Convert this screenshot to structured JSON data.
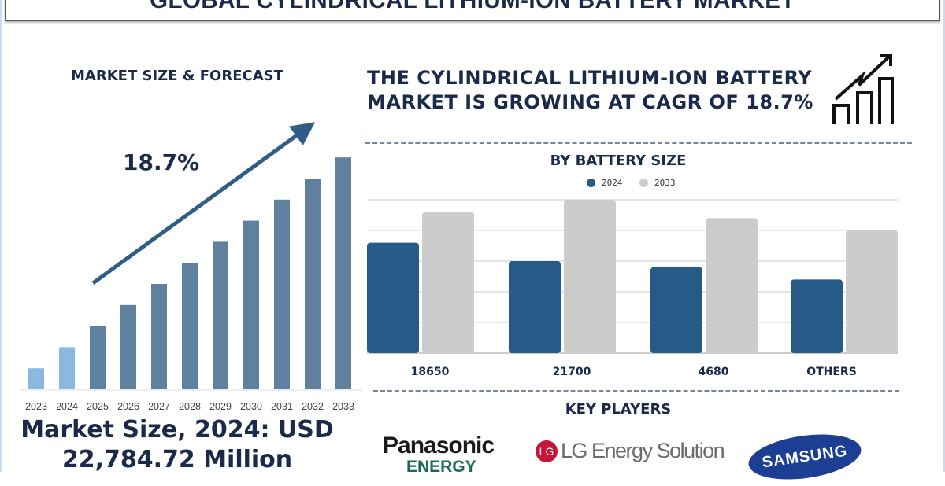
{
  "title": "GLOBAL CYLINDRICAL LITHIUM-ION BATTERY MARKET",
  "left": {
    "heading": "MARKET SIZE & FORECAST",
    "cagr_label": "18.7%",
    "market_size_line1": "Market Size, 2024: USD",
    "market_size_line2": "22,784.72 Million"
  },
  "headline": {
    "line1": "THE CYLINDRICAL LITHIUM-ION BATTERY",
    "line2": "MARKET IS GROWING AT CAGR OF 18.7%"
  },
  "key_players": {
    "heading": "KEY PLAYERS",
    "players": [
      "Panasonic",
      "ENERGY",
      "LG Energy Solution",
      "SAMSUNG"
    ]
  },
  "colors": {
    "dark": "#265b88",
    "light": "#cccccc",
    "forecast_past": "#8bb8df",
    "forecast_future": "#5f809f"
  },
  "chart_data": [
    {
      "type": "bar",
      "title": "MARKET SIZE & FORECAST",
      "categories": [
        "2023",
        "2024",
        "2025",
        "2026",
        "2027",
        "2028",
        "2029",
        "2030",
        "2031",
        "2032",
        "2033"
      ],
      "values": [
        1,
        2,
        3,
        4,
        5,
        6,
        7,
        8,
        9,
        10,
        11
      ],
      "note": "relative heights, no axis values shown",
      "annotation": "18.7%"
    },
    {
      "type": "bar",
      "title": "BY BATTERY SIZE",
      "categories": [
        "18650",
        "21700",
        "4680",
        "OTHERS"
      ],
      "series": [
        {
          "name": "2024",
          "values": [
            3.6,
            3.0,
            2.8,
            2.4
          ]
        },
        {
          "name": "2033",
          "values": [
            4.6,
            5.0,
            4.4,
            4.0
          ]
        }
      ],
      "ylim": [
        0,
        5
      ],
      "grid": true,
      "legend": "top-center"
    }
  ]
}
